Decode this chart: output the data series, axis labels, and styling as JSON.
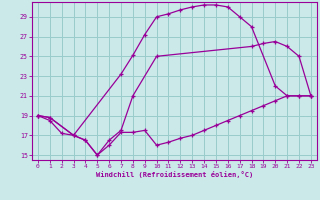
{
  "background_color": "#cbe9e9",
  "grid_color": "#99cccc",
  "line_color": "#990099",
  "xlabel": "Windchill (Refroidissement éolien,°C)",
  "xlim": [
    -0.5,
    23.5
  ],
  "ylim": [
    14.5,
    30.5
  ],
  "yticks": [
    15,
    17,
    19,
    21,
    23,
    25,
    27,
    29
  ],
  "xticks": [
    0,
    1,
    2,
    3,
    4,
    5,
    6,
    7,
    8,
    9,
    10,
    11,
    12,
    13,
    14,
    15,
    16,
    17,
    18,
    19,
    20,
    21,
    22,
    23
  ],
  "lines": [
    {
      "x": [
        0,
        1,
        2,
        3,
        7,
        8,
        9,
        10,
        11,
        12,
        13,
        14,
        15,
        16,
        17,
        18,
        20,
        21,
        22,
        23
      ],
      "y": [
        19,
        18.5,
        17.2,
        17.0,
        23.2,
        25.1,
        27.2,
        29.0,
        29.3,
        29.7,
        30.0,
        30.2,
        30.2,
        30.0,
        29.0,
        28.0,
        22.0,
        21.0,
        21.0,
        21.0
      ]
    },
    {
      "x": [
        0,
        1,
        3,
        4,
        5,
        6,
        7,
        8,
        10,
        18,
        19,
        20,
        21,
        22,
        23
      ],
      "y": [
        19.0,
        18.8,
        17.0,
        16.5,
        15.0,
        16.5,
        17.5,
        21.0,
        25.0,
        26.0,
        26.3,
        26.5,
        26.0,
        25.0,
        21.0
      ]
    },
    {
      "x": [
        0,
        1,
        3,
        4,
        5,
        6,
        7,
        8,
        9,
        10,
        11,
        12,
        13,
        14,
        15,
        16,
        17,
        18,
        19,
        20,
        21,
        22,
        23
      ],
      "y": [
        19.0,
        18.8,
        17.0,
        16.5,
        15.0,
        16.0,
        17.3,
        17.3,
        17.5,
        16.0,
        16.3,
        16.7,
        17.0,
        17.5,
        18.0,
        18.5,
        19.0,
        19.5,
        20.0,
        20.5,
        21.0,
        21.0,
        21.0
      ]
    }
  ]
}
